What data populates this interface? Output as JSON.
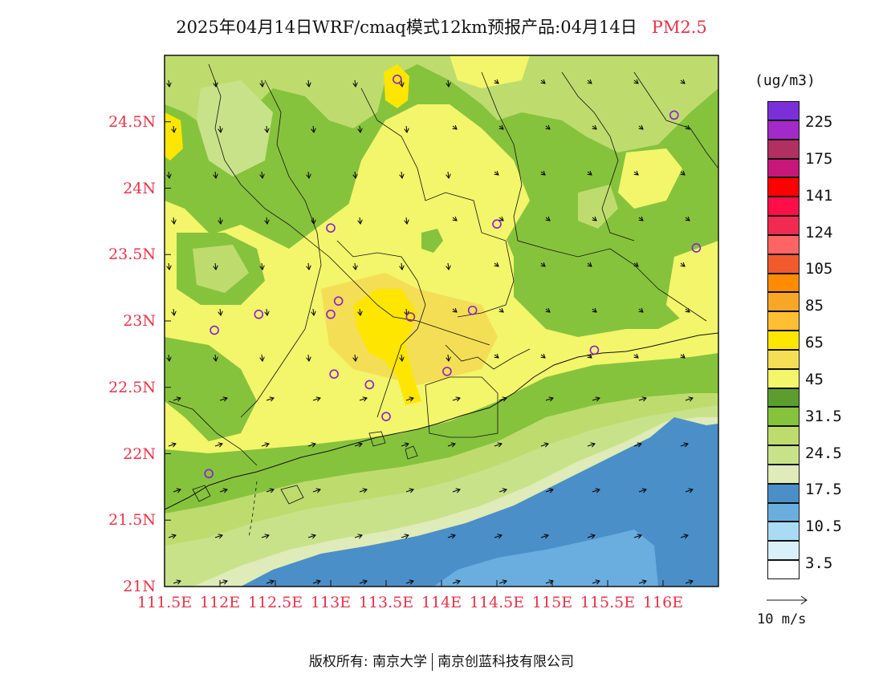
{
  "title": {
    "main": "2025年04月14日WRF/cmaq模式12km预报产品:04月14日",
    "pollutant": "PM2.5"
  },
  "chart_data": {
    "type": "contour-map",
    "variable": "PM2.5",
    "unit": "(ug/m3)",
    "lon_range": [
      111.5,
      116.5
    ],
    "lat_range": [
      21,
      25
    ],
    "lon_ticks": [
      "111.5E",
      "112E",
      "112.5E",
      "113E",
      "113.5E",
      "114E",
      "114.5E",
      "115E",
      "115.5E",
      "116E"
    ],
    "lat_ticks": [
      "21N",
      "21.5N",
      "22N",
      "22.5N",
      "23N",
      "23.5N",
      "24N",
      "24.5N"
    ],
    "lon_tick_values": [
      111.5,
      112,
      112.5,
      113,
      113.5,
      114,
      114.5,
      115,
      115.5,
      116
    ],
    "lat_tick_values": [
      21,
      21.5,
      22,
      22.5,
      23,
      23.5,
      24,
      24.5
    ],
    "legend": {
      "labeled_values": [
        "225",
        "175",
        "141",
        "124",
        "105",
        "85",
        "65",
        "45",
        "31.5",
        "24.5",
        "17.5",
        "10.5",
        "3.5"
      ],
      "colors_top_to_bottom": [
        "#7b2fd9",
        "#a329c9",
        "#b1305e",
        "#c8177a",
        "#ff0000",
        "#ff0e48",
        "#f02a50",
        "#ff6464",
        "#f05a2d",
        "#ff8c00",
        "#f8a626",
        "#ffbf33",
        "#ffe600",
        "#f3de55",
        "#f3f56b",
        "#5c9e2e",
        "#86c33d",
        "#bedc6e",
        "#c8e28a",
        "#dfebb8",
        "#4b8fc8",
        "#6aaee0",
        "#a9dcf4",
        "#d9f0fb",
        "#ffffff"
      ]
    },
    "wind_scale": {
      "label": "10 m/s"
    },
    "stations": [
      {
        "lon": 113.6,
        "lat": 24.82
      },
      {
        "lon": 116.1,
        "lat": 24.55
      },
      {
        "lon": 113.0,
        "lat": 23.7
      },
      {
        "lon": 114.5,
        "lat": 23.73
      },
      {
        "lon": 116.3,
        "lat": 23.55
      },
      {
        "lon": 112.35,
        "lat": 23.05
      },
      {
        "lon": 113.07,
        "lat": 23.15
      },
      {
        "lon": 113.0,
        "lat": 23.05
      },
      {
        "lon": 113.72,
        "lat": 23.03
      },
      {
        "lon": 114.28,
        "lat": 23.08
      },
      {
        "lon": 111.95,
        "lat": 22.93
      },
      {
        "lon": 113.03,
        "lat": 22.6
      },
      {
        "lon": 113.35,
        "lat": 22.52
      },
      {
        "lon": 114.05,
        "lat": 22.62
      },
      {
        "lon": 115.38,
        "lat": 22.78
      },
      {
        "lon": 113.5,
        "lat": 22.28
      },
      {
        "lon": 111.9,
        "lat": 21.85
      }
    ]
  },
  "copyright": {
    "left": "版权所有: 南京大学",
    "right": "南京创蓝科技有限公司"
  }
}
